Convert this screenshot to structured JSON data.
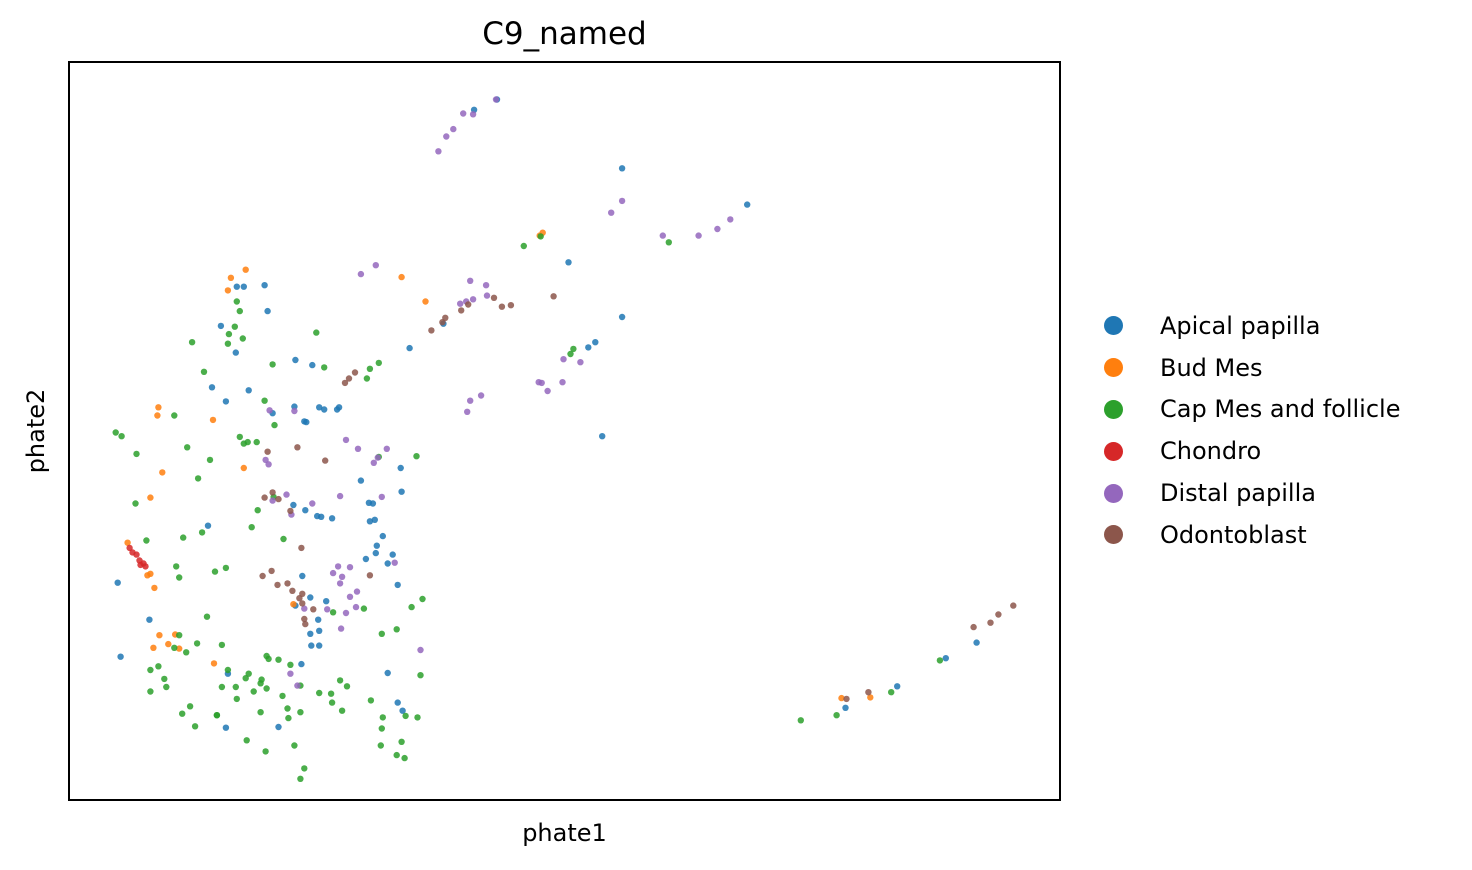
{
  "chart_data": {
    "type": "scatter",
    "title": "C9_named",
    "xlabel": "phate1",
    "ylabel": "phate2",
    "xticks": [],
    "yticks": [],
    "grid": false,
    "xlim": [
      0,
      100
    ],
    "ylim": [
      0,
      100
    ],
    "legend_position": "right",
    "series": [
      {
        "name": "Apical papilla",
        "color": "#1f77b4",
        "points": [
          [
            43.2,
            94.8
          ],
          [
            40.9,
            93.4
          ],
          [
            68.4,
            80.6
          ],
          [
            17,
            69.5
          ],
          [
            53.1,
            62
          ],
          [
            52.4,
            61.3
          ],
          [
            29.5,
            43.3
          ],
          [
            30.9,
            38
          ],
          [
            31.7,
            35.8
          ],
          [
            25.5,
            38.4
          ],
          [
            22.7,
            40
          ],
          [
            23.5,
            18.5
          ],
          [
            32.7,
            33.3
          ],
          [
            32.2,
            32.1
          ],
          [
            25.2,
            24.5
          ],
          [
            26,
            27
          ],
          [
            25.3,
            23
          ],
          [
            24.5,
            21
          ],
          [
            24.4,
            22.6
          ],
          [
            25.3,
            21
          ],
          [
            30,
            32.7
          ],
          [
            31.1,
            34.5
          ],
          [
            33.7,
            12.2
          ],
          [
            83.5,
            15.5
          ],
          [
            91.5,
            21.4
          ],
          [
            88.4,
            19.3
          ],
          [
            78.3,
            12.6
          ],
          [
            17.7,
            69.5
          ],
          [
            15.9,
            54
          ],
          [
            23.6,
            30.4
          ],
          [
            16.1,
            17.2
          ],
          [
            20.6,
            52.4
          ],
          [
            22.8,
            53.3
          ],
          [
            33.2,
            29.2
          ],
          [
            31,
            33.5
          ],
          [
            27.3,
            53.2
          ],
          [
            27.1,
            52.9
          ],
          [
            25.3,
            53.2
          ],
          [
            25.8,
            52.9
          ],
          [
            24,
            51.2
          ],
          [
            23.8,
            51.3
          ],
          [
            30.7,
            40.2
          ],
          [
            30.3,
            40.3
          ],
          [
            30.4,
            37.8
          ],
          [
            23.9,
            39.3
          ],
          [
            14.1,
            37.2
          ],
          [
            33.5,
            45
          ],
          [
            33.6,
            41.8
          ],
          [
            55.8,
            85.5
          ],
          [
            50.4,
            72.8
          ],
          [
            37.8,
            64.5
          ],
          [
            34.4,
            61.2
          ],
          [
            55.8,
            65.4
          ],
          [
            20.1,
            66.2
          ],
          [
            19.8,
            69.7
          ],
          [
            18.2,
            55.5
          ],
          [
            25.1,
            38.5
          ],
          [
            14.5,
            55.9
          ],
          [
            26.6,
            38.2
          ],
          [
            33.2,
            13.3
          ],
          [
            15.4,
            64.2
          ],
          [
            16.9,
            60.6
          ],
          [
            24.4,
            27.5
          ],
          [
            22.9,
            26.4
          ],
          [
            15.9,
            9.9
          ],
          [
            5.3,
            19.5
          ],
          [
            8.2,
            24.5
          ],
          [
            32.2,
            17.3
          ],
          [
            21.2,
            10
          ],
          [
            5,
            29.5
          ],
          [
            24.6,
            58.9
          ],
          [
            22.9,
            59.6
          ],
          [
            53.8,
            49.3
          ]
        ]
      },
      {
        "name": "Bud Mes",
        "color": "#ff7f0e",
        "points": [
          [
            17.9,
            71.8
          ],
          [
            16.4,
            70.7
          ],
          [
            47.8,
            76.8
          ],
          [
            47.5,
            76.4
          ],
          [
            9.1,
            53.2
          ],
          [
            9,
            52.1
          ],
          [
            6,
            34.9
          ],
          [
            8,
            30.5
          ],
          [
            8.3,
            30.7
          ],
          [
            9.2,
            22.4
          ],
          [
            10.1,
            21.2
          ],
          [
            10.8,
            22.5
          ],
          [
            14.7,
            18.6
          ],
          [
            77.9,
            13.9
          ],
          [
            80.8,
            14
          ],
          [
            8.7,
            28.8
          ],
          [
            16.1,
            69
          ],
          [
            11.2,
            20.6
          ],
          [
            8.6,
            20.7
          ],
          [
            33.6,
            70.8
          ],
          [
            36,
            67.5
          ],
          [
            8.3,
            41
          ],
          [
            9.5,
            44.4
          ],
          [
            22.7,
            26.6
          ],
          [
            17.7,
            45
          ],
          [
            14.6,
            51.5
          ]
        ]
      },
      {
        "name": "Cap Mes and follicle",
        "color": "#2ca02c",
        "points": [
          [
            17.3,
            66.2
          ],
          [
            16.2,
            63.1
          ],
          [
            16.8,
            64.1
          ],
          [
            31.3,
            59.2
          ],
          [
            30.4,
            58.4
          ],
          [
            30.1,
            57.1
          ],
          [
            50.9,
            61.1
          ],
          [
            50.6,
            60.4
          ],
          [
            9.7,
            16.5
          ],
          [
            10.7,
            20.7
          ],
          [
            8.3,
            14.8
          ],
          [
            9.9,
            15.4
          ],
          [
            9.1,
            18.2
          ],
          [
            8.3,
            17.7
          ],
          [
            17.7,
            48.3
          ],
          [
            18.1,
            48.5
          ],
          [
            17.3,
            49.2
          ],
          [
            15.5,
            21.1
          ],
          [
            16.1,
            17.7
          ],
          [
            22.4,
            18.4
          ],
          [
            21.6,
            14.2
          ],
          [
            22.2,
            11.2
          ],
          [
            22.8,
            7.5
          ],
          [
            27.6,
            12.2
          ],
          [
            33.6,
            8
          ],
          [
            34,
            11.5
          ],
          [
            33.9,
            5.8
          ],
          [
            23.8,
            4.4
          ],
          [
            77.4,
            11.6
          ],
          [
            73.8,
            10.9
          ],
          [
            82.9,
            14.7
          ],
          [
            87.8,
            19
          ],
          [
            45.9,
            75
          ],
          [
            47.6,
            76.3
          ],
          [
            60.5,
            75.5
          ],
          [
            4.8,
            49.8
          ],
          [
            5.4,
            49.3
          ],
          [
            6.9,
            46.9
          ],
          [
            14.8,
            31
          ],
          [
            15,
            11.6
          ],
          [
            12.8,
            10.1
          ],
          [
            31.3,
            46.5
          ],
          [
            31.6,
            22.6
          ],
          [
            31.7,
            11.3
          ],
          [
            18.2,
            17.2
          ],
          [
            12.5,
            62
          ],
          [
            13.7,
            58
          ],
          [
            25.3,
            14.6
          ],
          [
            20,
            15.2
          ],
          [
            15.9,
            31.5
          ],
          [
            23.4,
            3
          ],
          [
            28.1,
            15.5
          ],
          [
            27.4,
            16.3
          ],
          [
            17.9,
            16.6
          ],
          [
            21.7,
            35.4
          ],
          [
            14,
            24.9
          ],
          [
            10.9,
            31.7
          ],
          [
            25,
            63.3
          ],
          [
            30.5,
            13.6
          ],
          [
            35.1,
            46.6
          ],
          [
            17,
            13.8
          ],
          [
            11.6,
            35.6
          ],
          [
            6.8,
            40.2
          ],
          [
            23.4,
            15.6
          ],
          [
            19.4,
            15.9
          ],
          [
            19.9,
            6.7
          ],
          [
            20.8,
            50.8
          ],
          [
            19.8,
            54.1
          ],
          [
            35.5,
            17
          ],
          [
            19.1,
            39.3
          ],
          [
            18.5,
            37
          ],
          [
            21.2,
            19.1
          ],
          [
            19.4,
            12
          ],
          [
            16.9,
            15.4
          ],
          [
            13.5,
            36.3
          ],
          [
            11.2,
            30.2
          ],
          [
            17,
            67.5
          ],
          [
            17.6,
            62.5
          ],
          [
            20.6,
            59
          ],
          [
            18.7,
            14.8
          ],
          [
            20.2,
            19.2
          ],
          [
            11.2,
            22.4
          ],
          [
            15.5,
            15.4
          ],
          [
            35.7,
            27.3
          ],
          [
            20.7,
            41.1
          ],
          [
            14.3,
            46.1
          ],
          [
            10.7,
            52.1
          ],
          [
            18,
            8.2
          ],
          [
            33.1,
            6.2
          ],
          [
            29.8,
            26
          ],
          [
            34.6,
            26.2
          ],
          [
            25.8,
            58.6
          ],
          [
            26.7,
            25.5
          ],
          [
            26.5,
            14.5
          ],
          [
            22.1,
            12.5
          ],
          [
            15,
            11.6
          ],
          [
            12.3,
            12.8
          ],
          [
            19,
            48.5
          ],
          [
            19.5,
            16.4
          ],
          [
            31.6,
            9.8
          ],
          [
            26.6,
            13.3
          ],
          [
            20,
            19.6
          ],
          [
            7.9,
            35.2
          ],
          [
            12,
            47.8
          ],
          [
            23.4,
            12
          ],
          [
            35.2,
            11.3
          ],
          [
            11.9,
            20.1
          ],
          [
            11.5,
            11.8
          ],
          [
            13.1,
            43.6
          ],
          [
            33.1,
            23.2
          ],
          [
            16.1,
            61.8
          ],
          [
            31.5,
            7.5
          ],
          [
            13,
            21.3
          ]
        ]
      },
      {
        "name": "Chondro",
        "color": "#d62728",
        "points": [
          [
            6.5,
            33.6
          ],
          [
            6.9,
            33.3
          ],
          [
            7.2,
            32.5
          ],
          [
            7.3,
            31.9
          ],
          [
            6.2,
            34.2
          ],
          [
            7.6,
            32.1
          ],
          [
            7.8,
            31.7
          ]
        ]
      },
      {
        "name": "Distal papilla",
        "color": "#9467bd",
        "points": [
          [
            40.8,
            92.8
          ],
          [
            38.8,
            90.8
          ],
          [
            37.3,
            87.8
          ],
          [
            43.1,
            94.8
          ],
          [
            39.8,
            92.9
          ],
          [
            38.1,
            89.8
          ],
          [
            65.4,
            77.3
          ],
          [
            66.7,
            78.6
          ],
          [
            63.5,
            76.4
          ],
          [
            49.8,
            56.6
          ],
          [
            51.6,
            59.3
          ],
          [
            48.3,
            55.4
          ],
          [
            31.2,
            46.4
          ],
          [
            32.1,
            47.6
          ],
          [
            30.8,
            45.7
          ],
          [
            27.4,
            41.2
          ],
          [
            24.6,
            40.2
          ],
          [
            20.6,
            40.6
          ],
          [
            27.2,
            31.7
          ],
          [
            28.4,
            31.6
          ],
          [
            27.6,
            30.3
          ],
          [
            26.7,
            30.8
          ],
          [
            27.4,
            29.4
          ],
          [
            28,
            25.4
          ],
          [
            29.1,
            28.3
          ],
          [
            28.4,
            27.6
          ],
          [
            29,
            26.2
          ],
          [
            27.5,
            23.3
          ],
          [
            20.2,
            45.5
          ],
          [
            19.9,
            46.1
          ],
          [
            40.5,
            70.3
          ],
          [
            42.1,
            69.7
          ],
          [
            40.8,
            67.8
          ],
          [
            42.2,
            68.3
          ],
          [
            39.5,
            67.2
          ],
          [
            40.1,
            67.5
          ],
          [
            29.5,
            71.2
          ],
          [
            31,
            72.4
          ],
          [
            22.4,
            17.2
          ],
          [
            23.1,
            15.6
          ],
          [
            47.4,
            56.6
          ],
          [
            49.9,
            59.7
          ],
          [
            55.8,
            81.1
          ],
          [
            22.8,
            52.7
          ],
          [
            20.3,
            52.8
          ],
          [
            22,
            41.4
          ],
          [
            40.5,
            54.1
          ],
          [
            40.2,
            52.6
          ],
          [
            54.7,
            79.5
          ],
          [
            59.9,
            76.4
          ],
          [
            23.8,
            26
          ],
          [
            35.5,
            20.4
          ],
          [
            41.6,
            54.8
          ],
          [
            47.7,
            56.5
          ],
          [
            28,
            48.8
          ],
          [
            31.6,
            41.1
          ],
          [
            22.5,
            38.7
          ],
          [
            29.2,
            47.6
          ],
          [
            26.1,
            25.9
          ],
          [
            32.9,
            32.2
          ]
        ]
      },
      {
        "name": "Odontoblast",
        "color": "#8c564b",
        "points": [
          [
            40.3,
            67.1
          ],
          [
            38,
            65.3
          ],
          [
            36.6,
            63.6
          ],
          [
            19.8,
            41
          ],
          [
            22.4,
            39.2
          ],
          [
            20.5,
            31.1
          ],
          [
            21.1,
            29.2
          ],
          [
            23.3,
            27.4
          ],
          [
            24.7,
            25.9
          ],
          [
            23.6,
            26.7
          ],
          [
            22.1,
            29.4
          ],
          [
            22.6,
            28.4
          ],
          [
            95.2,
            26.4
          ],
          [
            93.7,
            25.2
          ],
          [
            91.2,
            23.5
          ],
          [
            78.4,
            13.8
          ],
          [
            80.6,
            14.7
          ],
          [
            23.9,
            23.9
          ],
          [
            44.6,
            67
          ],
          [
            48.9,
            68.2
          ],
          [
            28.9,
            57.9
          ],
          [
            27.9,
            56.5
          ],
          [
            23.8,
            24.6
          ],
          [
            42.9,
            68
          ],
          [
            21.2,
            40.8
          ],
          [
            92.9,
            24.1
          ],
          [
            20.1,
            47.2
          ],
          [
            23.1,
            47.8
          ],
          [
            23.6,
            28
          ],
          [
            20.6,
            41.7
          ],
          [
            30.4,
            30.5
          ],
          [
            28.3,
            57.1
          ],
          [
            39.6,
            66.3
          ],
          [
            37.7,
            64.7
          ],
          [
            43.7,
            66.8
          ],
          [
            19.6,
            30.4
          ],
          [
            23.5,
            34.2
          ],
          [
            25.9,
            46
          ]
        ]
      }
    ]
  }
}
